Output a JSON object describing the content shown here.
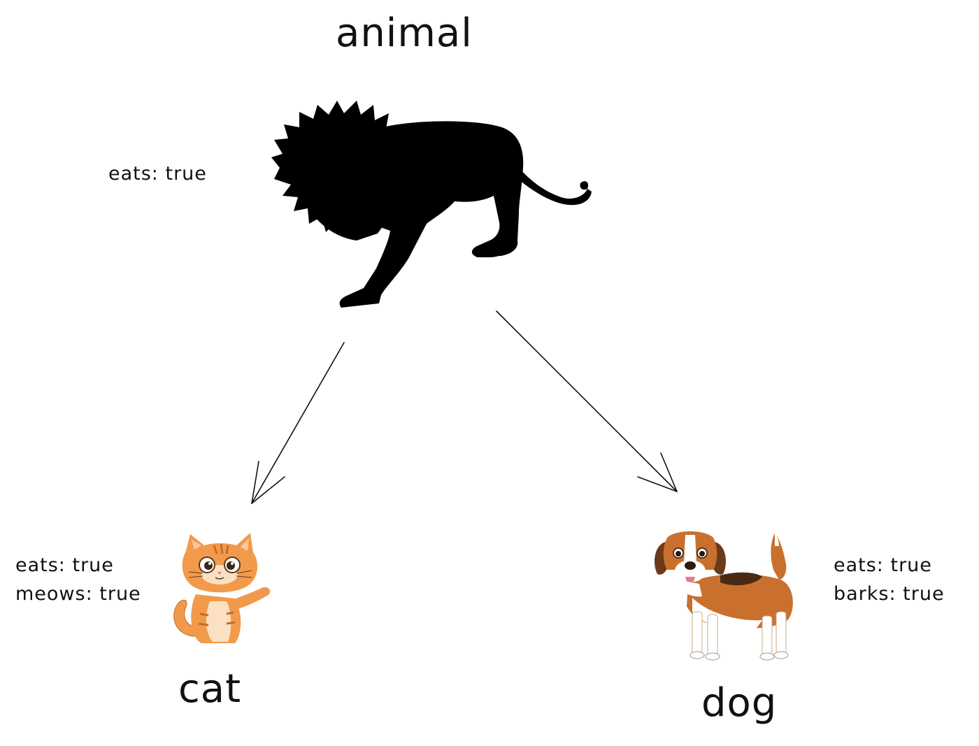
{
  "diagram": {
    "parent": {
      "name": "animal",
      "properties": [
        "eats: true"
      ],
      "icon": "lion-silhouette-icon"
    },
    "children": [
      {
        "name": "cat",
        "properties": [
          "eats: true",
          "meows: true"
        ],
        "icon": "cat-icon"
      },
      {
        "name": "dog",
        "properties": [
          "eats: true",
          "barks: true"
        ],
        "icon": "dog-icon"
      }
    ],
    "colors": {
      "line": "#111111",
      "silhouette": "#000000",
      "cat_fur": "#f29a4c",
      "dog_fur": "#c9702e"
    }
  }
}
